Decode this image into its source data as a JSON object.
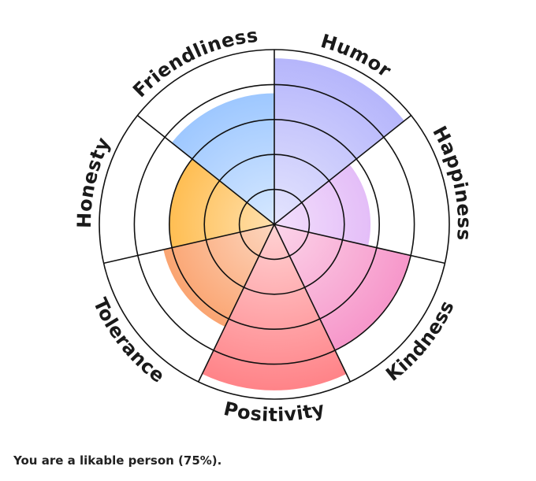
{
  "chart_data": {
    "type": "polar-area",
    "categories": [
      "Humor",
      "Happiness",
      "Kindness",
      "Positivity",
      "Tolerance",
      "Honesty",
      "Friendliness"
    ],
    "values": [
      95,
      55,
      80,
      95,
      65,
      60,
      75
    ],
    "colors": [
      "#b3b3fb",
      "#d9a3f5",
      "#f587c2",
      "#ff7f84",
      "#f98a48",
      "#ffa716",
      "#8bbdff"
    ],
    "ylim": [
      0,
      100
    ],
    "yticks": [
      20,
      40,
      60,
      80,
      100
    ],
    "caption": "You are a likable person (75%)."
  }
}
